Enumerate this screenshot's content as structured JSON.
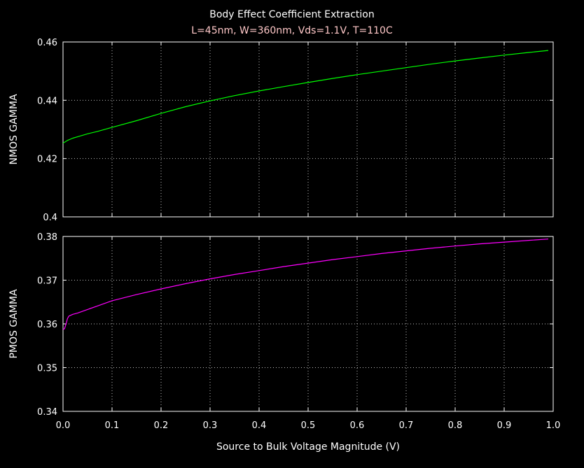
{
  "figure": {
    "title": "Body Effect Coefficient Extraction",
    "subtitle": "L=45nm, W=360nm, Vds=1.1V, T=110C",
    "xlabel": "Source to Bulk Voltage Magnitude (V)",
    "colors": {
      "background": "#000000",
      "axes": "#ffffff",
      "grid": "#bfbfbf",
      "title": "#ffffff",
      "subtitle": "#ffc8c8",
      "nmos_line": "#00ff00",
      "pmos_line": "#ff00ff"
    }
  },
  "chart_data": [
    {
      "type": "line",
      "title": "",
      "xlabel": "",
      "ylabel": "NMOS GAMMA",
      "xlim": [
        0,
        1.0
      ],
      "ylim": [
        0.4,
        0.46
      ],
      "grid": true,
      "x_ticks": [
        "0.0",
        "0.1",
        "0.2",
        "0.3",
        "0.4",
        "0.5",
        "0.6",
        "0.7",
        "0.8",
        "0.9",
        "1.0"
      ],
      "y_ticks": [
        "0.4",
        "0.42",
        "0.44",
        "0.46"
      ],
      "y_tick_values": [
        0.4,
        0.42,
        0.44,
        0.46
      ],
      "series": [
        {
          "color": "#00ff00",
          "x": [
            0.0,
            0.005,
            0.01,
            0.02,
            0.03,
            0.05,
            0.07,
            0.1,
            0.15,
            0.2,
            0.25,
            0.3,
            0.35,
            0.4,
            0.45,
            0.5,
            0.55,
            0.6,
            0.65,
            0.7,
            0.75,
            0.8,
            0.85,
            0.9,
            0.95,
            0.99
          ],
          "y": [
            0.4253,
            0.4258,
            0.4263,
            0.427,
            0.4275,
            0.4285,
            0.4293,
            0.4307,
            0.433,
            0.4355,
            0.4378,
            0.4398,
            0.4416,
            0.4432,
            0.4447,
            0.4461,
            0.4475,
            0.4488,
            0.45,
            0.4512,
            0.4524,
            0.4535,
            0.4545,
            0.4555,
            0.4564,
            0.4571
          ]
        }
      ]
    },
    {
      "type": "line",
      "title": "",
      "xlabel": "Source to Bulk Voltage Magnitude (V)",
      "ylabel": "PMOS GAMMA",
      "xlim": [
        0,
        1.0
      ],
      "ylim": [
        0.34,
        0.38
      ],
      "grid": true,
      "x_ticks": [
        "0.0",
        "0.1",
        "0.2",
        "0.3",
        "0.4",
        "0.5",
        "0.6",
        "0.7",
        "0.8",
        "0.9",
        "1.0"
      ],
      "y_ticks": [
        "0.34",
        "0.35",
        "0.36",
        "0.37",
        "0.38"
      ],
      "y_tick_values": [
        0.34,
        0.35,
        0.36,
        0.37,
        0.38
      ],
      "series": [
        {
          "color": "#ff00ff",
          "x": [
            0.0,
            0.003,
            0.006,
            0.009,
            0.012,
            0.02,
            0.03,
            0.05,
            0.07,
            0.1,
            0.15,
            0.2,
            0.25,
            0.3,
            0.35,
            0.4,
            0.45,
            0.5,
            0.55,
            0.6,
            0.65,
            0.7,
            0.75,
            0.8,
            0.85,
            0.9,
            0.95,
            0.99
          ],
          "y": [
            0.3587,
            0.3589,
            0.3599,
            0.3612,
            0.3618,
            0.3622,
            0.3625,
            0.3633,
            0.3641,
            0.3653,
            0.3667,
            0.368,
            0.3692,
            0.3703,
            0.3713,
            0.3722,
            0.3731,
            0.3739,
            0.3747,
            0.3754,
            0.3761,
            0.3767,
            0.3773,
            0.3778,
            0.3783,
            0.3787,
            0.3791,
            0.3794
          ]
        }
      ]
    }
  ]
}
